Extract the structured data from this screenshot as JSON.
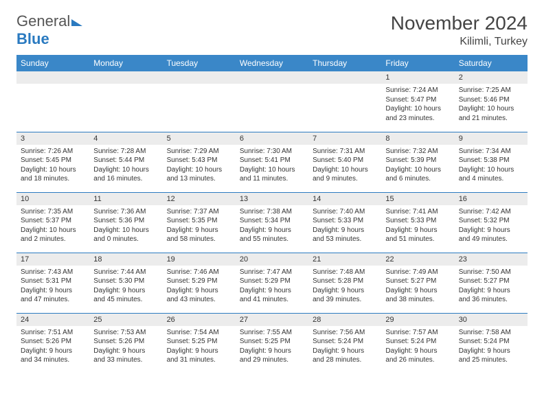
{
  "brand": {
    "word1": "General",
    "word2": "Blue"
  },
  "title": "November 2024",
  "location": "Kilimli, Turkey",
  "colors": {
    "header_bg": "#3a87c8",
    "border": "#2a7ac0",
    "daynum_bg": "#ececec",
    "text": "#333333",
    "brand_gray": "#555555",
    "brand_blue": "#2a7ac0"
  },
  "weekdays": [
    "Sunday",
    "Monday",
    "Tuesday",
    "Wednesday",
    "Thursday",
    "Friday",
    "Saturday"
  ],
  "weeks": [
    [
      {
        "n": "",
        "sr": "",
        "ss": "",
        "dl": ""
      },
      {
        "n": "",
        "sr": "",
        "ss": "",
        "dl": ""
      },
      {
        "n": "",
        "sr": "",
        "ss": "",
        "dl": ""
      },
      {
        "n": "",
        "sr": "",
        "ss": "",
        "dl": ""
      },
      {
        "n": "",
        "sr": "",
        "ss": "",
        "dl": ""
      },
      {
        "n": "1",
        "sr": "Sunrise: 7:24 AM",
        "ss": "Sunset: 5:47 PM",
        "dl": "Daylight: 10 hours and 23 minutes."
      },
      {
        "n": "2",
        "sr": "Sunrise: 7:25 AM",
        "ss": "Sunset: 5:46 PM",
        "dl": "Daylight: 10 hours and 21 minutes."
      }
    ],
    [
      {
        "n": "3",
        "sr": "Sunrise: 7:26 AM",
        "ss": "Sunset: 5:45 PM",
        "dl": "Daylight: 10 hours and 18 minutes."
      },
      {
        "n": "4",
        "sr": "Sunrise: 7:28 AM",
        "ss": "Sunset: 5:44 PM",
        "dl": "Daylight: 10 hours and 16 minutes."
      },
      {
        "n": "5",
        "sr": "Sunrise: 7:29 AM",
        "ss": "Sunset: 5:43 PM",
        "dl": "Daylight: 10 hours and 13 minutes."
      },
      {
        "n": "6",
        "sr": "Sunrise: 7:30 AM",
        "ss": "Sunset: 5:41 PM",
        "dl": "Daylight: 10 hours and 11 minutes."
      },
      {
        "n": "7",
        "sr": "Sunrise: 7:31 AM",
        "ss": "Sunset: 5:40 PM",
        "dl": "Daylight: 10 hours and 9 minutes."
      },
      {
        "n": "8",
        "sr": "Sunrise: 7:32 AM",
        "ss": "Sunset: 5:39 PM",
        "dl": "Daylight: 10 hours and 6 minutes."
      },
      {
        "n": "9",
        "sr": "Sunrise: 7:34 AM",
        "ss": "Sunset: 5:38 PM",
        "dl": "Daylight: 10 hours and 4 minutes."
      }
    ],
    [
      {
        "n": "10",
        "sr": "Sunrise: 7:35 AM",
        "ss": "Sunset: 5:37 PM",
        "dl": "Daylight: 10 hours and 2 minutes."
      },
      {
        "n": "11",
        "sr": "Sunrise: 7:36 AM",
        "ss": "Sunset: 5:36 PM",
        "dl": "Daylight: 10 hours and 0 minutes."
      },
      {
        "n": "12",
        "sr": "Sunrise: 7:37 AM",
        "ss": "Sunset: 5:35 PM",
        "dl": "Daylight: 9 hours and 58 minutes."
      },
      {
        "n": "13",
        "sr": "Sunrise: 7:38 AM",
        "ss": "Sunset: 5:34 PM",
        "dl": "Daylight: 9 hours and 55 minutes."
      },
      {
        "n": "14",
        "sr": "Sunrise: 7:40 AM",
        "ss": "Sunset: 5:33 PM",
        "dl": "Daylight: 9 hours and 53 minutes."
      },
      {
        "n": "15",
        "sr": "Sunrise: 7:41 AM",
        "ss": "Sunset: 5:33 PM",
        "dl": "Daylight: 9 hours and 51 minutes."
      },
      {
        "n": "16",
        "sr": "Sunrise: 7:42 AM",
        "ss": "Sunset: 5:32 PM",
        "dl": "Daylight: 9 hours and 49 minutes."
      }
    ],
    [
      {
        "n": "17",
        "sr": "Sunrise: 7:43 AM",
        "ss": "Sunset: 5:31 PM",
        "dl": "Daylight: 9 hours and 47 minutes."
      },
      {
        "n": "18",
        "sr": "Sunrise: 7:44 AM",
        "ss": "Sunset: 5:30 PM",
        "dl": "Daylight: 9 hours and 45 minutes."
      },
      {
        "n": "19",
        "sr": "Sunrise: 7:46 AM",
        "ss": "Sunset: 5:29 PM",
        "dl": "Daylight: 9 hours and 43 minutes."
      },
      {
        "n": "20",
        "sr": "Sunrise: 7:47 AM",
        "ss": "Sunset: 5:29 PM",
        "dl": "Daylight: 9 hours and 41 minutes."
      },
      {
        "n": "21",
        "sr": "Sunrise: 7:48 AM",
        "ss": "Sunset: 5:28 PM",
        "dl": "Daylight: 9 hours and 39 minutes."
      },
      {
        "n": "22",
        "sr": "Sunrise: 7:49 AM",
        "ss": "Sunset: 5:27 PM",
        "dl": "Daylight: 9 hours and 38 minutes."
      },
      {
        "n": "23",
        "sr": "Sunrise: 7:50 AM",
        "ss": "Sunset: 5:27 PM",
        "dl": "Daylight: 9 hours and 36 minutes."
      }
    ],
    [
      {
        "n": "24",
        "sr": "Sunrise: 7:51 AM",
        "ss": "Sunset: 5:26 PM",
        "dl": "Daylight: 9 hours and 34 minutes."
      },
      {
        "n": "25",
        "sr": "Sunrise: 7:53 AM",
        "ss": "Sunset: 5:26 PM",
        "dl": "Daylight: 9 hours and 33 minutes."
      },
      {
        "n": "26",
        "sr": "Sunrise: 7:54 AM",
        "ss": "Sunset: 5:25 PM",
        "dl": "Daylight: 9 hours and 31 minutes."
      },
      {
        "n": "27",
        "sr": "Sunrise: 7:55 AM",
        "ss": "Sunset: 5:25 PM",
        "dl": "Daylight: 9 hours and 29 minutes."
      },
      {
        "n": "28",
        "sr": "Sunrise: 7:56 AM",
        "ss": "Sunset: 5:24 PM",
        "dl": "Daylight: 9 hours and 28 minutes."
      },
      {
        "n": "29",
        "sr": "Sunrise: 7:57 AM",
        "ss": "Sunset: 5:24 PM",
        "dl": "Daylight: 9 hours and 26 minutes."
      },
      {
        "n": "30",
        "sr": "Sunrise: 7:58 AM",
        "ss": "Sunset: 5:24 PM",
        "dl": "Daylight: 9 hours and 25 minutes."
      }
    ]
  ]
}
